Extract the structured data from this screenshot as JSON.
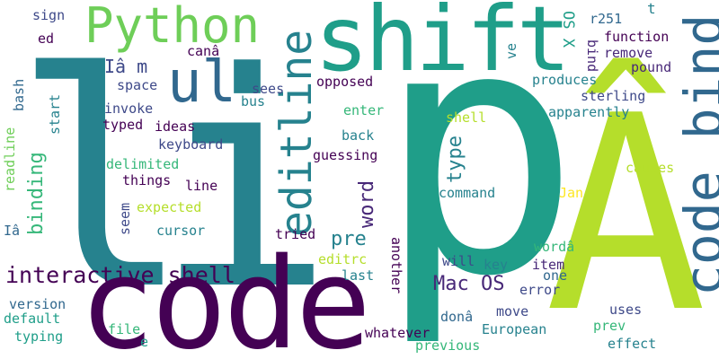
{
  "words": {
    "li": "li",
    "p": "p",
    "code": "code",
    "a_circ": "Â",
    "shift": "shift",
    "code_bind": "code bind",
    "python": "Python",
    "editline": "editline",
    "ul": "ul",
    "interactive_shell": "interactive shell",
    "mac_os": "Mac OS",
    "word": "word",
    "binding": "binding",
    "type": "type",
    "pre": "pre",
    "ia_m": "Iâ m",
    "sign": "sign",
    "ed": "ed",
    "t": "t",
    "os_x": "OS X",
    "r251": "r251",
    "function": "function",
    "cana": "canâ",
    "bind": "bind",
    "ve": "ve",
    "remove": "remove",
    "pound": "pound",
    "bash": "bash",
    "start": "start",
    "space": "space",
    "sees": "sees",
    "opposed": "opposed",
    "produces": "produces",
    "sterling": "sterling",
    "invoke": "invoke",
    "bus": "bus",
    "enter": "enter",
    "apparently": "apparently",
    "typed": "typed",
    "ideas": "ideas",
    "shell": "shell",
    "readline": "readline",
    "back": "back",
    "keyboard": "keyboard",
    "guessing": "guessing",
    "delimited": "delimited",
    "causes": "causes",
    "things": "things",
    "line": "line",
    "command": "command",
    "jan": "Jan",
    "expected": "expected",
    "seem": "seem",
    "ia": "Iâ",
    "cursor": "cursor",
    "tried": "tried",
    "worda": "wordâ",
    "editrc": "editrc",
    "another": "another",
    "will": "will",
    "key": "key",
    "item": "item",
    "last": "last",
    "one": "one",
    "version": "version",
    "error": "error",
    "default": "default",
    "dona": "donâ",
    "uses": "uses",
    "move": "move",
    "typing": "typing",
    "file": "file",
    "e": "e",
    "european": "European",
    "prev": "prev",
    "whatever": "whatever",
    "previous": "previous",
    "effect": "effect"
  },
  "colors": {
    "background": "#ffffff",
    "dark_purple": "#440154",
    "indigo": "#482878",
    "deep_blue": "#3e4989",
    "slate_blue": "#31688e",
    "teal_blue": "#26828e",
    "teal": "#1f9e89",
    "sea_green": "#35b779",
    "green": "#6ece58",
    "lime": "#b5de2b",
    "yellow": "#fde725"
  }
}
